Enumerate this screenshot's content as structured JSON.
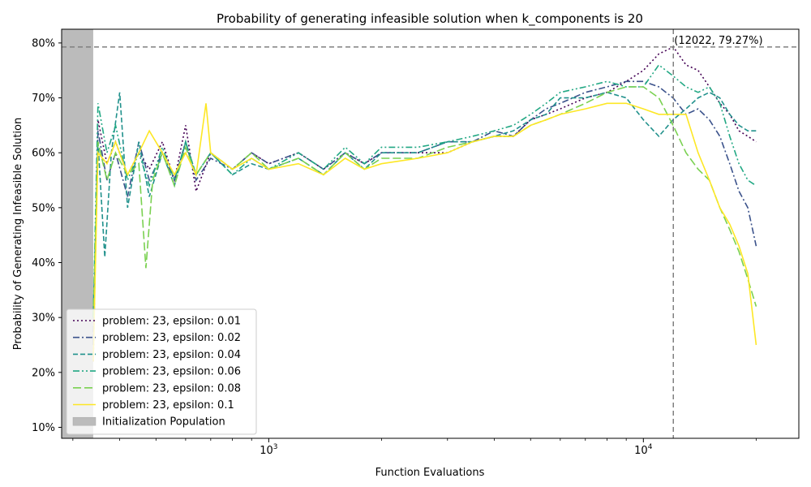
{
  "chart_data": {
    "type": "line",
    "title": "Probability of generating infeasible solution when k_components is 20",
    "xlabel": "Function Evaluations",
    "ylabel": "Probability of Generating Infeasible Solution",
    "xscale": "log",
    "xlim": [
      280,
      26000
    ],
    "ylim": [
      0.08,
      0.825
    ],
    "x_major_ticks": [
      {
        "value": 1000,
        "base": "10",
        "exp": "3"
      },
      {
        "value": 10000,
        "base": "10",
        "exp": "4"
      }
    ],
    "y_ticks": [
      {
        "value": 0.1,
        "label": "10%"
      },
      {
        "value": 0.2,
        "label": "20%"
      },
      {
        "value": 0.3,
        "label": "30%"
      },
      {
        "value": 0.4,
        "label": "40%"
      },
      {
        "value": 0.5,
        "label": "50%"
      },
      {
        "value": 0.6,
        "label": "60%"
      },
      {
        "value": 0.7,
        "label": "70%"
      },
      {
        "value": 0.8,
        "label": "80%"
      }
    ],
    "grid": false,
    "legend_position": "lower-left",
    "init_region": {
      "x0": 280,
      "x1": 340,
      "label": "Initialization Population",
      "color": "#bbbbbb"
    },
    "max_point": {
      "x": 12022,
      "y": 0.7927,
      "label": "(12022, 79.27%)"
    },
    "series": [
      {
        "name": "problem: 23, epsilon: 0.01",
        "color": "#440154",
        "dash": "2,3",
        "points": [
          [
            340,
            0.22
          ],
          [
            350,
            0.66
          ],
          [
            370,
            0.58
          ],
          [
            390,
            0.62
          ],
          [
            420,
            0.56
          ],
          [
            450,
            0.6
          ],
          [
            480,
            0.57
          ],
          [
            520,
            0.62
          ],
          [
            560,
            0.55
          ],
          [
            600,
            0.65
          ],
          [
            640,
            0.53
          ],
          [
            700,
            0.6
          ],
          [
            800,
            0.57
          ],
          [
            900,
            0.6
          ],
          [
            1000,
            0.58
          ],
          [
            1200,
            0.6
          ],
          [
            1400,
            0.57
          ],
          [
            1600,
            0.6
          ],
          [
            1800,
            0.58
          ],
          [
            2000,
            0.6
          ],
          [
            2500,
            0.6
          ],
          [
            3000,
            0.6
          ],
          [
            3500,
            0.62
          ],
          [
            4000,
            0.63
          ],
          [
            4500,
            0.63
          ],
          [
            5000,
            0.66
          ],
          [
            5500,
            0.67
          ],
          [
            6000,
            0.68
          ],
          [
            7000,
            0.7
          ],
          [
            8000,
            0.71
          ],
          [
            9000,
            0.73
          ],
          [
            10000,
            0.75
          ],
          [
            11000,
            0.78
          ],
          [
            12022,
            0.7927
          ],
          [
            13000,
            0.76
          ],
          [
            14000,
            0.75
          ],
          [
            15000,
            0.72
          ],
          [
            16000,
            0.69
          ],
          [
            17000,
            0.67
          ],
          [
            18000,
            0.64
          ],
          [
            19000,
            0.63
          ],
          [
            20000,
            0.62
          ]
        ]
      },
      {
        "name": "problem: 23, epsilon: 0.02",
        "color": "#3b528b",
        "dash": "8,3,2,3",
        "points": [
          [
            340,
            0.25
          ],
          [
            350,
            0.64
          ],
          [
            370,
            0.55
          ],
          [
            390,
            0.6
          ],
          [
            420,
            0.52
          ],
          [
            450,
            0.62
          ],
          [
            480,
            0.55
          ],
          [
            520,
            0.6
          ],
          [
            560,
            0.55
          ],
          [
            600,
            0.62
          ],
          [
            640,
            0.55
          ],
          [
            700,
            0.59
          ],
          [
            800,
            0.57
          ],
          [
            900,
            0.6
          ],
          [
            1000,
            0.58
          ],
          [
            1200,
            0.6
          ],
          [
            1400,
            0.57
          ],
          [
            1600,
            0.6
          ],
          [
            1800,
            0.58
          ],
          [
            2000,
            0.6
          ],
          [
            2500,
            0.6
          ],
          [
            3000,
            0.62
          ],
          [
            3500,
            0.62
          ],
          [
            4000,
            0.64
          ],
          [
            4500,
            0.63
          ],
          [
            5000,
            0.66
          ],
          [
            5500,
            0.68
          ],
          [
            6000,
            0.69
          ],
          [
            7000,
            0.71
          ],
          [
            8000,
            0.72
          ],
          [
            9000,
            0.73
          ],
          [
            10000,
            0.73
          ],
          [
            11000,
            0.72
          ],
          [
            12000,
            0.7
          ],
          [
            13000,
            0.67
          ],
          [
            14000,
            0.68
          ],
          [
            15000,
            0.66
          ],
          [
            16000,
            0.63
          ],
          [
            17000,
            0.58
          ],
          [
            18000,
            0.53
          ],
          [
            19000,
            0.5
          ],
          [
            20000,
            0.43
          ]
        ]
      },
      {
        "name": "problem: 23, epsilon: 0.04",
        "color": "#21918c",
        "dash": "6,3",
        "points": [
          [
            340,
            0.3
          ],
          [
            350,
            0.62
          ],
          [
            365,
            0.41
          ],
          [
            380,
            0.6
          ],
          [
            400,
            0.71
          ],
          [
            420,
            0.5
          ],
          [
            450,
            0.62
          ],
          [
            480,
            0.52
          ],
          [
            520,
            0.6
          ],
          [
            560,
            0.54
          ],
          [
            600,
            0.62
          ],
          [
            640,
            0.56
          ],
          [
            700,
            0.6
          ],
          [
            800,
            0.56
          ],
          [
            900,
            0.58
          ],
          [
            1000,
            0.57
          ],
          [
            1200,
            0.59
          ],
          [
            1400,
            0.56
          ],
          [
            1600,
            0.6
          ],
          [
            1800,
            0.57
          ],
          [
            2000,
            0.6
          ],
          [
            2500,
            0.6
          ],
          [
            3000,
            0.62
          ],
          [
            3500,
            0.62
          ],
          [
            4000,
            0.63
          ],
          [
            4500,
            0.64
          ],
          [
            5000,
            0.66
          ],
          [
            5500,
            0.67
          ],
          [
            6000,
            0.7
          ],
          [
            7000,
            0.7
          ],
          [
            8000,
            0.71
          ],
          [
            9000,
            0.7
          ],
          [
            10000,
            0.66
          ],
          [
            11000,
            0.63
          ],
          [
            12000,
            0.66
          ],
          [
            13000,
            0.68
          ],
          [
            14000,
            0.7
          ],
          [
            15000,
            0.71
          ],
          [
            16000,
            0.7
          ],
          [
            17000,
            0.67
          ],
          [
            18000,
            0.65
          ],
          [
            19000,
            0.64
          ],
          [
            20000,
            0.64
          ]
        ]
      },
      {
        "name": "problem: 23, epsilon: 0.06",
        "color": "#22a884",
        "dash": "8,3,2,3,2,3",
        "points": [
          [
            340,
            0.3
          ],
          [
            350,
            0.69
          ],
          [
            370,
            0.6
          ],
          [
            390,
            0.65
          ],
          [
            420,
            0.55
          ],
          [
            450,
            0.6
          ],
          [
            480,
            0.54
          ],
          [
            520,
            0.61
          ],
          [
            560,
            0.55
          ],
          [
            600,
            0.62
          ],
          [
            640,
            0.56
          ],
          [
            700,
            0.6
          ],
          [
            800,
            0.56
          ],
          [
            900,
            0.59
          ],
          [
            1000,
            0.57
          ],
          [
            1200,
            0.6
          ],
          [
            1400,
            0.57
          ],
          [
            1600,
            0.61
          ],
          [
            1800,
            0.58
          ],
          [
            2000,
            0.61
          ],
          [
            2500,
            0.61
          ],
          [
            3000,
            0.62
          ],
          [
            3500,
            0.63
          ],
          [
            4000,
            0.64
          ],
          [
            4500,
            0.65
          ],
          [
            5000,
            0.67
          ],
          [
            5500,
            0.69
          ],
          [
            6000,
            0.71
          ],
          [
            7000,
            0.72
          ],
          [
            8000,
            0.73
          ],
          [
            9000,
            0.72
          ],
          [
            10000,
            0.72
          ],
          [
            11000,
            0.76
          ],
          [
            12000,
            0.74
          ],
          [
            13000,
            0.72
          ],
          [
            14000,
            0.71
          ],
          [
            15000,
            0.72
          ],
          [
            16000,
            0.69
          ],
          [
            17000,
            0.63
          ],
          [
            18000,
            0.58
          ],
          [
            19000,
            0.55
          ],
          [
            20000,
            0.54
          ]
        ]
      },
      {
        "name": "problem: 23, epsilon: 0.08",
        "color": "#7ad151",
        "dash": "10,4",
        "points": [
          [
            340,
            0.3
          ],
          [
            350,
            0.62
          ],
          [
            370,
            0.55
          ],
          [
            390,
            0.6
          ],
          [
            420,
            0.56
          ],
          [
            450,
            0.58
          ],
          [
            470,
            0.39
          ],
          [
            490,
            0.55
          ],
          [
            520,
            0.6
          ],
          [
            560,
            0.54
          ],
          [
            600,
            0.61
          ],
          [
            640,
            0.56
          ],
          [
            700,
            0.6
          ],
          [
            800,
            0.57
          ],
          [
            900,
            0.6
          ],
          [
            1000,
            0.57
          ],
          [
            1200,
            0.59
          ],
          [
            1400,
            0.56
          ],
          [
            1600,
            0.6
          ],
          [
            1800,
            0.57
          ],
          [
            2000,
            0.59
          ],
          [
            2500,
            0.59
          ],
          [
            3000,
            0.61
          ],
          [
            3500,
            0.62
          ],
          [
            4000,
            0.63
          ],
          [
            4500,
            0.63
          ],
          [
            5000,
            0.65
          ],
          [
            5500,
            0.66
          ],
          [
            6000,
            0.67
          ],
          [
            7000,
            0.69
          ],
          [
            8000,
            0.71
          ],
          [
            9000,
            0.72
          ],
          [
            10000,
            0.72
          ],
          [
            11000,
            0.7
          ],
          [
            12000,
            0.65
          ],
          [
            13000,
            0.6
          ],
          [
            14000,
            0.57
          ],
          [
            15000,
            0.55
          ],
          [
            16000,
            0.5
          ],
          [
            17000,
            0.46
          ],
          [
            18000,
            0.42
          ],
          [
            19000,
            0.37
          ],
          [
            20000,
            0.32
          ]
        ]
      },
      {
        "name": "problem: 23, epsilon: 0.1",
        "color": "#fde725",
        "dash": "",
        "points": [
          [
            340,
            0.22
          ],
          [
            350,
            0.6
          ],
          [
            370,
            0.58
          ],
          [
            390,
            0.62
          ],
          [
            420,
            0.56
          ],
          [
            450,
            0.6
          ],
          [
            480,
            0.64
          ],
          [
            520,
            0.6
          ],
          [
            560,
            0.56
          ],
          [
            600,
            0.6
          ],
          [
            640,
            0.56
          ],
          [
            680,
            0.69
          ],
          [
            700,
            0.6
          ],
          [
            800,
            0.57
          ],
          [
            900,
            0.59
          ],
          [
            1000,
            0.57
          ],
          [
            1200,
            0.58
          ],
          [
            1400,
            0.56
          ],
          [
            1600,
            0.59
          ],
          [
            1800,
            0.57
          ],
          [
            2000,
            0.58
          ],
          [
            2500,
            0.59
          ],
          [
            3000,
            0.6
          ],
          [
            3500,
            0.62
          ],
          [
            4000,
            0.63
          ],
          [
            4500,
            0.63
          ],
          [
            5000,
            0.65
          ],
          [
            5500,
            0.66
          ],
          [
            6000,
            0.67
          ],
          [
            7000,
            0.68
          ],
          [
            8000,
            0.69
          ],
          [
            9000,
            0.69
          ],
          [
            10000,
            0.68
          ],
          [
            11000,
            0.67
          ],
          [
            12000,
            0.67
          ],
          [
            13000,
            0.67
          ],
          [
            14000,
            0.6
          ],
          [
            15000,
            0.55
          ],
          [
            16000,
            0.5
          ],
          [
            17000,
            0.47
          ],
          [
            18000,
            0.43
          ],
          [
            19000,
            0.38
          ],
          [
            20000,
            0.25
          ]
        ]
      }
    ]
  }
}
